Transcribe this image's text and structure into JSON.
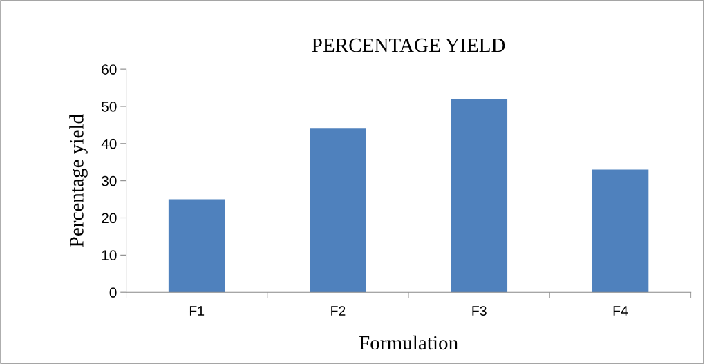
{
  "chart_data": {
    "type": "bar",
    "title": "PERCENTAGE YIELD",
    "xlabel": "Formulation",
    "ylabel": "Percentage yield",
    "categories": [
      "F1",
      "F2",
      "F3",
      "F4"
    ],
    "values": [
      25,
      44,
      52,
      33
    ],
    "color": "#4f81bd",
    "ylim": [
      0,
      60
    ],
    "yticks": [
      0,
      10,
      20,
      30,
      40,
      50,
      60
    ],
    "grid": false,
    "legend": false
  }
}
